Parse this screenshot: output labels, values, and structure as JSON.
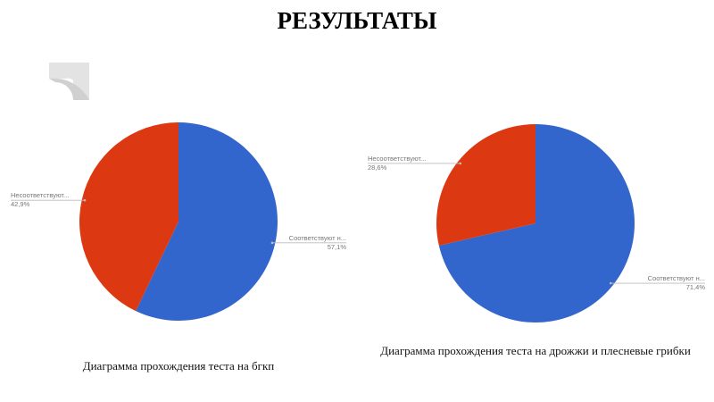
{
  "title": "РЕЗУЛЬТАТЫ",
  "chart_data": [
    {
      "type": "pie",
      "caption": "Диаграмма прохождения теста на бгкп",
      "categories": [
        "Соответствуют н...",
        "Несоответствуют..."
      ],
      "values": [
        57.1,
        42.9
      ],
      "value_labels": [
        "57,1%",
        "42,9%"
      ],
      "colors": [
        "#3366cc",
        "#dc3912"
      ]
    },
    {
      "type": "pie",
      "caption": "Диаграмма прохождения теста на дрожжи и плесневые грибки",
      "categories": [
        "Соответствуют н...",
        "Несоответствуют..."
      ],
      "values": [
        71.4,
        28.6
      ],
      "value_labels": [
        "71,4%",
        "28,6%"
      ],
      "colors": [
        "#3366cc",
        "#dc3912"
      ]
    }
  ]
}
